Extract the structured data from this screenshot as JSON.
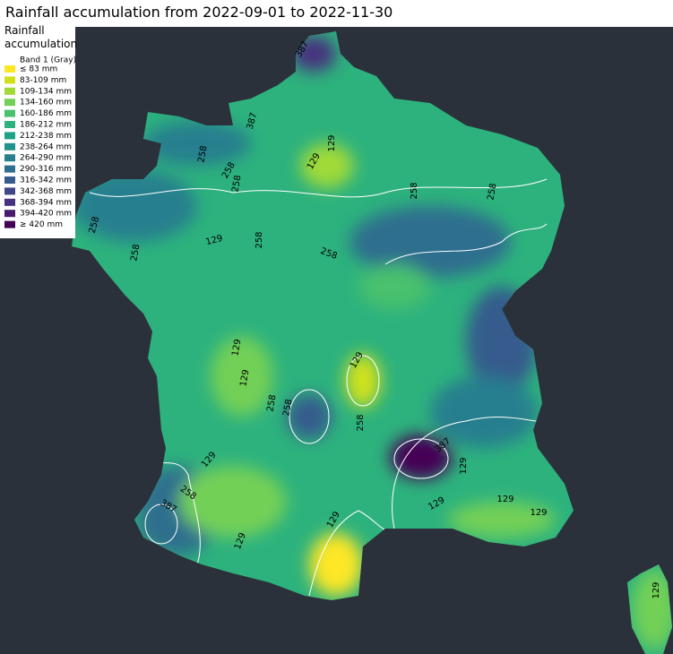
{
  "title": "Rainfall accumulation from 2022-09-01 to 2022-11-30",
  "legend": {
    "title_lines": [
      "Rainfall",
      "accumulation"
    ],
    "band": "Band 1 (Gray)",
    "items": [
      {
        "label": "≤ 83 mm",
        "color": "#fde725"
      },
      {
        "label": "83-109 mm",
        "color": "#d0e11c"
      },
      {
        "label": "109-134 mm",
        "color": "#a0da39"
      },
      {
        "label": "134-160 mm",
        "color": "#73d056"
      },
      {
        "label": "160-186 mm",
        "color": "#4ac16d"
      },
      {
        "label": "186-212 mm",
        "color": "#2db27d"
      },
      {
        "label": "212-238 mm",
        "color": "#1fa187"
      },
      {
        "label": "238-264 mm",
        "color": "#21918c"
      },
      {
        "label": "264-290 mm",
        "color": "#277f8e"
      },
      {
        "label": "290-316 mm",
        "color": "#2e6e8e"
      },
      {
        "label": "316-342 mm",
        "color": "#365c8d"
      },
      {
        "label": "342-368 mm",
        "color": "#3f4788"
      },
      {
        "label": "368-394 mm",
        "color": "#46327e"
      },
      {
        "label": "394-420 mm",
        "color": "#481b6d"
      },
      {
        "label": "≥ 420 mm",
        "color": "#440154"
      }
    ]
  },
  "contour_labels": [
    387,
    387,
    258,
    258,
    258,
    129,
    129,
    258,
    258,
    129,
    258,
    258,
    258,
    258,
    129,
    129,
    258,
    258,
    129,
    258,
    387,
    129,
    258,
    387,
    129,
    129,
    129,
    129,
    129,
    129,
    129
  ]
}
